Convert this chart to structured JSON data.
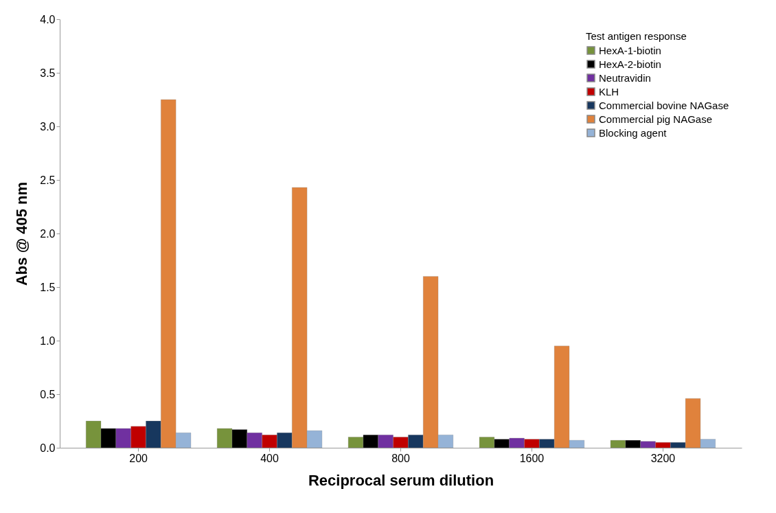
{
  "chart_data": {
    "type": "bar",
    "xlabel": "Reciprocal serum dilution",
    "ylabel": "Abs  @ 405 nm",
    "legend_title": "Test antigen response",
    "legend": "top right",
    "grid": false,
    "categories": [
      "200",
      "400",
      "800",
      "1600",
      "3200"
    ],
    "ylim": [
      0,
      4
    ],
    "yticks": [
      {
        "value": 0,
        "label": "0.0"
      },
      {
        "value": 0.5,
        "label": "0.5"
      },
      {
        "value": 1,
        "label": "1.0"
      },
      {
        "value": 1.5,
        "label": "1.5"
      },
      {
        "value": 2,
        "label": "2.0"
      },
      {
        "value": 2.5,
        "label": "2.5"
      },
      {
        "value": 3,
        "label": "3.0"
      },
      {
        "value": 3.5,
        "label": "3.5"
      },
      {
        "value": 4,
        "label": "4.0"
      }
    ],
    "series": [
      {
        "name": "HexA-1-biotin",
        "color": "#77933c",
        "values": [
          0.25,
          0.18,
          0.1,
          0.1,
          0.07
        ]
      },
      {
        "name": "HexA-2-biotin",
        "color": "#000000",
        "values": [
          0.18,
          0.17,
          0.12,
          0.08,
          0.07
        ]
      },
      {
        "name": "Neutravidin",
        "color": "#7030a0",
        "values": [
          0.18,
          0.14,
          0.12,
          0.09,
          0.06
        ]
      },
      {
        "name": "KLH",
        "color": "#c00000",
        "values": [
          0.2,
          0.12,
          0.1,
          0.08,
          0.05
        ]
      },
      {
        "name": "Commercial bovine NAGase",
        "color": "#17375e",
        "values": [
          0.25,
          0.14,
          0.12,
          0.08,
          0.05
        ]
      },
      {
        "name": "Commercial pig NAGase",
        "color": "#e0823c",
        "values": [
          3.25,
          2.43,
          1.6,
          0.95,
          0.46
        ]
      },
      {
        "name": "Blocking agent",
        "color": "#95b3d7",
        "values": [
          0.14,
          0.16,
          0.12,
          0.07,
          0.08
        ]
      }
    ]
  }
}
